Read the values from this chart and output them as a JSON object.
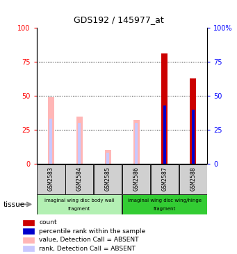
{
  "title": "GDS192 / 145977_at",
  "samples": [
    "GSM2583",
    "GSM2584",
    "GSM2585",
    "GSM2586",
    "GSM2587",
    "GSM2588"
  ],
  "absent_value": [
    49,
    35,
    10,
    32,
    0,
    0
  ],
  "absent_rank": [
    33,
    30,
    8,
    30,
    0,
    0
  ],
  "present_count": [
    0,
    0,
    0,
    0,
    81,
    63
  ],
  "present_rank": [
    0,
    0,
    0,
    0,
    43,
    40
  ],
  "groups": [
    {
      "label_top": "imaginal wing disc body wall",
      "label_bot": "fragment",
      "start": 0,
      "end": 3,
      "color": "#b3f0b3"
    },
    {
      "label_top": "imaginal wing disc wing/hinge",
      "label_bot": "fragment",
      "start": 3,
      "end": 6,
      "color": "#33cc33"
    }
  ],
  "tissue_label": "tissue",
  "yticks": [
    0,
    25,
    50,
    75,
    100
  ],
  "yticklabels_left": [
    "0",
    "25",
    "50",
    "75",
    "100"
  ],
  "yticklabels_right": [
    "0",
    "25",
    "50",
    "75",
    "100%"
  ],
  "ylim": [
    0,
    100
  ],
  "color_count": "#cc0000",
  "color_rank": "#0000cc",
  "color_absent_value": "#ffb6b6",
  "color_absent_rank": "#c8c8ff",
  "legend": [
    {
      "label": "count",
      "color": "#cc0000"
    },
    {
      "label": "percentile rank within the sample",
      "color": "#0000cc"
    },
    {
      "label": "value, Detection Call = ABSENT",
      "color": "#ffb6b6"
    },
    {
      "label": "rank, Detection Call = ABSENT",
      "color": "#c8c8ff"
    }
  ]
}
